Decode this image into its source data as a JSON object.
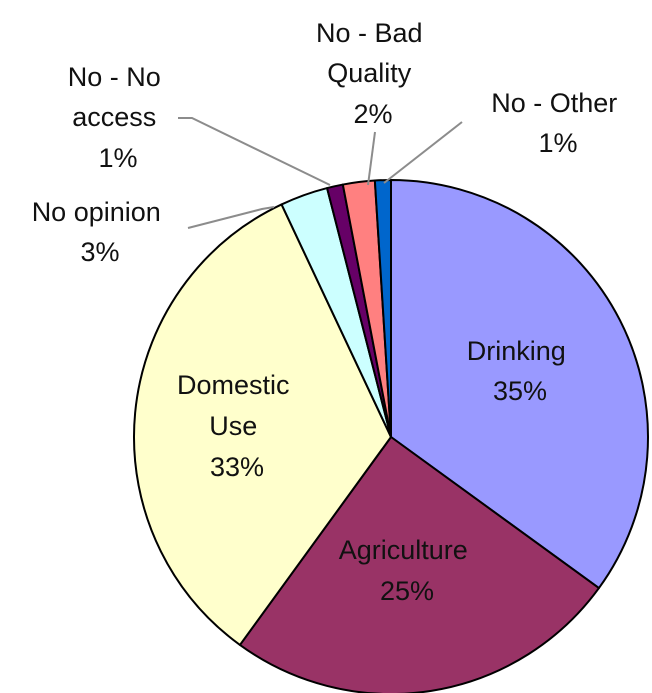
{
  "chart_data": {
    "type": "pie",
    "slices": [
      {
        "label": "Drinking",
        "value": 35,
        "pct": "35%",
        "color": "#9999ff"
      },
      {
        "label": "Agriculture",
        "value": 25,
        "pct": "25%",
        "color": "#993366"
      },
      {
        "label": "Domestic Use",
        "value": 33,
        "pct": "33%",
        "color": "#ffffcc"
      },
      {
        "label": "No opinion",
        "value": 3,
        "pct": "3%",
        "color": "#ccffff"
      },
      {
        "label": "No - No access",
        "value": 1,
        "pct": "1%",
        "color": "#660066"
      },
      {
        "label": "No - Bad Quality",
        "value": 2,
        "pct": "2%",
        "color": "#ff8080"
      },
      {
        "label": "No - Other",
        "value": 1,
        "pct": "1%",
        "color": "#0066cc"
      }
    ]
  }
}
